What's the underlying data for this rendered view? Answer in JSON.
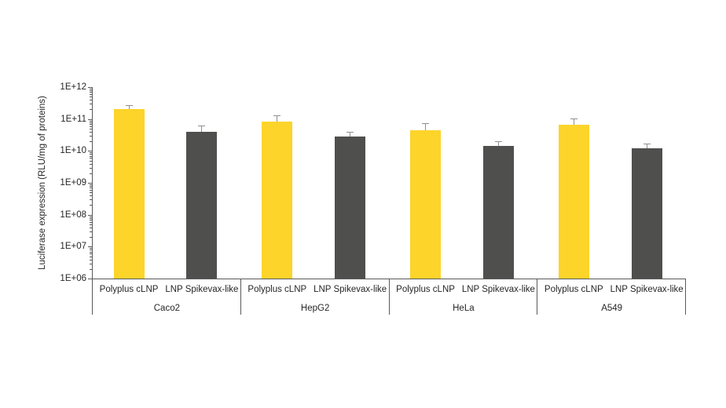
{
  "chart_data": {
    "type": "bar",
    "title": "",
    "xlabel": "",
    "ylabel": "Luciferase expression (RLU/mg of proteins)",
    "y_scale": "log",
    "ylim": [
      1000000.0,
      1000000000000.0
    ],
    "y_tick_labels": [
      "1E+12",
      "1E+11",
      "1E+10",
      "1E+09",
      "1E+08",
      "1E+07",
      "1E+06"
    ],
    "grid": false,
    "legend_position": "none",
    "categories": [
      "Caco2",
      "HepG2",
      "HeLa",
      "A549"
    ],
    "bar_labels": [
      "Polyplus cLNP",
      "LNP Spikevax-like"
    ],
    "series": [
      {
        "name": "Polyplus cLNP",
        "color": "#FCD42A",
        "values": [
          200000000000.0,
          82000000000.0,
          44000000000.0,
          66000000000.0
        ],
        "error_top": [
          250000000000.0,
          120000000000.0,
          70000000000.0,
          98000000000.0
        ]
      },
      {
        "name": "LNP Spikevax-like",
        "color": "#4F4F4E",
        "values": [
          39000000000.0,
          28000000000.0,
          14000000000.0,
          12000000000.0
        ],
        "error_top": [
          59000000000.0,
          37000000000.0,
          19000000000.0,
          16000000000.0
        ]
      }
    ]
  },
  "colors": {
    "axis": "#595959",
    "error_bar": "#8f8f8f",
    "text": "#262626",
    "background": "#ffffff"
  }
}
